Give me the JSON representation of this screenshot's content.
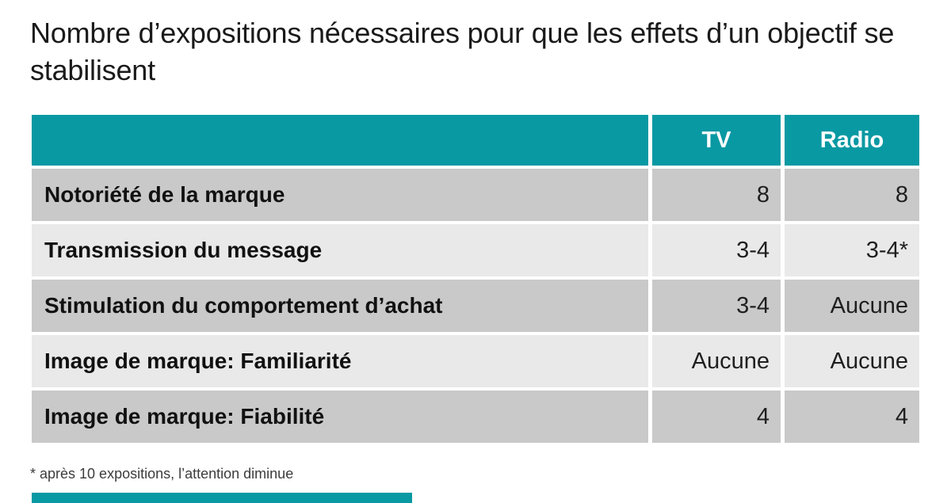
{
  "chart_data": {
    "type": "table",
    "title": "Nombre d’expositions nécessaires pour que les effets d’un objectif se stabilisent",
    "columns": [
      "",
      "TV",
      "Radio"
    ],
    "rows": [
      [
        "Notoriété de la marque",
        "8",
        "8"
      ],
      [
        "Transmission du message",
        "3-4",
        "3-4*"
      ],
      [
        "Stimulation du comportement d’achat",
        "3-4",
        "Aucune"
      ],
      [
        "Image de marque: Familiarité",
        "Aucune",
        "Aucune"
      ],
      [
        "Image de marque: Fiabilité",
        "4",
        "4"
      ]
    ],
    "footnote": "* après 10 expositions, l’attention diminue",
    "layout": {
      "header_alignment": "center",
      "label_alignment": "left",
      "value_alignment": "right",
      "row_striping": [
        "dark",
        "light",
        "dark",
        "light",
        "dark"
      ]
    }
  },
  "colors": {
    "header_teal": "#0999a3",
    "row_dark": "#c9c9c9",
    "row_light": "#e9e9e9",
    "title_text": "#1a1a1a",
    "footnote_text": "#3c3c3c",
    "header_text": "#ffffff",
    "bottom_bar": "#0999a3"
  }
}
